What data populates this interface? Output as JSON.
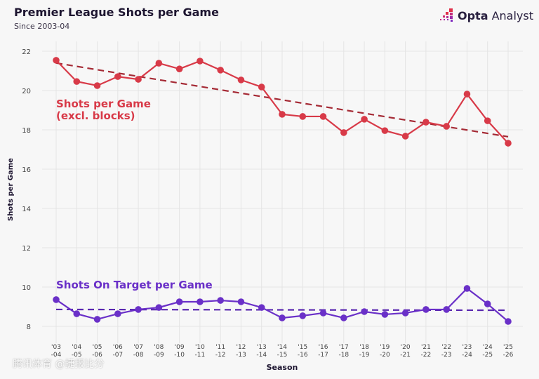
{
  "header": {
    "title": "Premier League Shots per Game",
    "subtitle": "Since 2003-04",
    "logo_text_bold": "Opta",
    "logo_text": "Analyst"
  },
  "watermark": "腾讯体育 @捷报比分",
  "colors": {
    "shots": "#d83a48",
    "shots_trend": "#a52a35",
    "on_target": "#6a30c8",
    "on_target_trend": "#5a28b0"
  },
  "chart_data": {
    "type": "line",
    "title": "Premier League Shots per Game",
    "subtitle": "Since 2003-04",
    "xlabel": "Season",
    "ylabel": "Shots per Game",
    "ylim": [
      7.5,
      22.5
    ],
    "yticks": [
      8,
      10,
      12,
      14,
      16,
      18,
      20,
      22
    ],
    "grid": true,
    "categories": [
      [
        "'03",
        "-04"
      ],
      [
        "'04",
        "-05"
      ],
      [
        "'05",
        "-06"
      ],
      [
        "'06",
        "-07"
      ],
      [
        "'07",
        "-08"
      ],
      [
        "'08",
        "-09"
      ],
      [
        "'09",
        "-10"
      ],
      [
        "'10",
        "-11"
      ],
      [
        "'11",
        "-12"
      ],
      [
        "'12",
        "-13"
      ],
      [
        "'13",
        "-14"
      ],
      [
        "'14",
        "-15"
      ],
      [
        "'15",
        "-16"
      ],
      [
        "'16",
        "-17"
      ],
      [
        "'17",
        "-18"
      ],
      [
        "'18",
        "-19"
      ],
      [
        "'19",
        "-20"
      ],
      [
        "'20",
        "-21"
      ],
      [
        "'21",
        "-22"
      ],
      [
        "'22",
        "-23"
      ],
      [
        "'23",
        "-24"
      ],
      [
        "'24",
        "-25"
      ],
      [
        "'25",
        "-26"
      ]
    ],
    "series": [
      {
        "name": "Shots per Game (excl. blocks)",
        "label_lines": [
          "Shots per Game",
          "(excl. blocks)"
        ],
        "values": [
          21.54,
          20.46,
          20.25,
          20.71,
          20.57,
          21.39,
          21.1,
          21.5,
          21.04,
          20.54,
          20.18,
          18.79,
          18.68,
          18.68,
          17.86,
          18.54,
          17.96,
          17.68,
          18.39,
          18.18,
          19.82,
          18.46,
          17.32
        ],
        "trend": [
          21.4,
          17.65
        ]
      },
      {
        "name": "Shots On Target per Game",
        "label_lines": [
          "Shots On Target per Game"
        ],
        "values": [
          9.36,
          8.64,
          8.36,
          8.64,
          8.86,
          8.96,
          9.25,
          9.25,
          9.32,
          9.25,
          8.96,
          8.43,
          8.54,
          8.68,
          8.43,
          8.75,
          8.61,
          8.68,
          8.86,
          8.86,
          9.93,
          9.14,
          8.25
        ],
        "trend": [
          8.86,
          8.82
        ]
      }
    ]
  }
}
